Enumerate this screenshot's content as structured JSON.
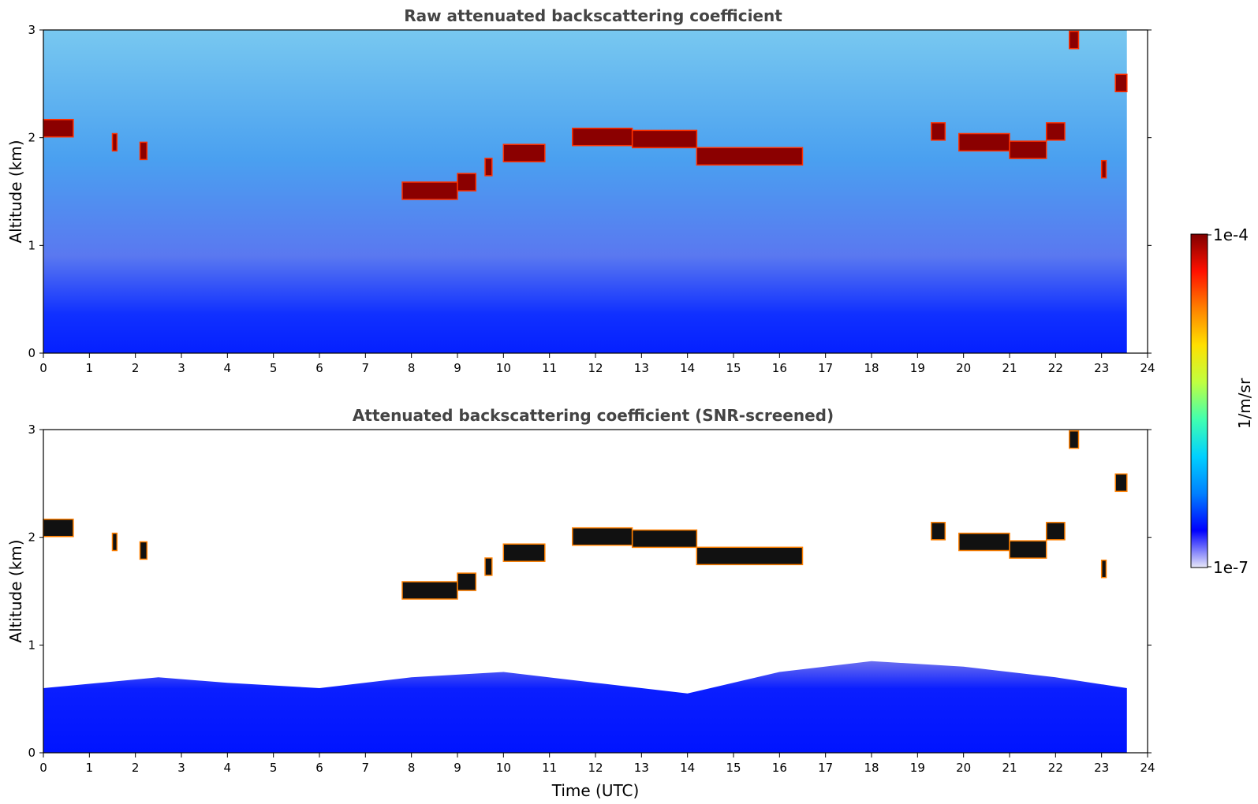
{
  "chart_data": [
    {
      "type": "heatmap",
      "title": "Raw attenuated backscattering coefficient",
      "xlabel": "",
      "ylabel": "Altitude (km)",
      "xlim": [
        0,
        24
      ],
      "ylim": [
        0,
        3
      ],
      "xticks": [
        "0",
        "1",
        "2",
        "3",
        "4",
        "5",
        "6",
        "7",
        "8",
        "9",
        "10",
        "11",
        "12",
        "13",
        "14",
        "15",
        "16",
        "17",
        "18",
        "19",
        "20",
        "21",
        "22",
        "23",
        "24"
      ],
      "yticks": [
        "0",
        "1",
        "2",
        "3"
      ],
      "data_end_time": 23.55,
      "cloud_layers": [
        {
          "t": [
            0.0,
            0.65
          ],
          "alt_km": 2.08
        },
        {
          "t": [
            1.5,
            1.6
          ],
          "alt_km": 1.95
        },
        {
          "t": [
            2.1,
            2.25
          ],
          "alt_km": 1.87
        },
        {
          "t": [
            7.8,
            9.0
          ],
          "alt_km": 1.5
        },
        {
          "t": [
            9.0,
            9.4
          ],
          "alt_km": 1.58
        },
        {
          "t": [
            9.6,
            9.75
          ],
          "alt_km": 1.72
        },
        {
          "t": [
            10.0,
            10.9
          ],
          "alt_km": 1.85
        },
        {
          "t": [
            11.5,
            12.8
          ],
          "alt_km": 2.0
        },
        {
          "t": [
            12.8,
            14.2
          ],
          "alt_km": 1.98
        },
        {
          "t": [
            14.2,
            16.5
          ],
          "alt_km": 1.82
        },
        {
          "t": [
            19.3,
            19.6
          ],
          "alt_km": 2.05
        },
        {
          "t": [
            19.9,
            21.0
          ],
          "alt_km": 1.95
        },
        {
          "t": [
            21.0,
            21.8
          ],
          "alt_km": 1.88
        },
        {
          "t": [
            21.8,
            22.2
          ],
          "alt_km": 2.05
        },
        {
          "t": [
            22.3,
            22.5
          ],
          "alt_km": 2.9
        },
        {
          "t": [
            23.0,
            23.1
          ],
          "alt_km": 1.7
        },
        {
          "t": [
            23.3,
            23.55
          ],
          "alt_km": 2.5
        }
      ]
    },
    {
      "type": "heatmap",
      "title": "Attenuated backscattering coefficient (SNR-screened)",
      "xlabel": "Time (UTC)",
      "ylabel": "Altitude (km)",
      "xlim": [
        0,
        24
      ],
      "ylim": [
        0,
        3
      ],
      "xticks": [
        "0",
        "1",
        "2",
        "3",
        "4",
        "5",
        "6",
        "7",
        "8",
        "9",
        "10",
        "11",
        "12",
        "13",
        "14",
        "15",
        "16",
        "17",
        "18",
        "19",
        "20",
        "21",
        "22",
        "23",
        "24"
      ],
      "yticks": [
        "0",
        "1",
        "2",
        "3"
      ],
      "data_end_time": 23.55,
      "boundary_layer_top_km": [
        {
          "t": 0,
          "h": 0.6
        },
        {
          "t": 2.5,
          "h": 0.7
        },
        {
          "t": 4,
          "h": 0.65
        },
        {
          "t": 6,
          "h": 0.6
        },
        {
          "t": 8,
          "h": 0.7
        },
        {
          "t": 10,
          "h": 0.75
        },
        {
          "t": 12,
          "h": 0.65
        },
        {
          "t": 14,
          "h": 0.55
        },
        {
          "t": 16,
          "h": 0.75
        },
        {
          "t": 18,
          "h": 0.85
        },
        {
          "t": 20,
          "h": 0.8
        },
        {
          "t": 22,
          "h": 0.7
        },
        {
          "t": 23.55,
          "h": 0.6
        }
      ],
      "cloud_layers": [
        {
          "t": [
            0.0,
            0.65
          ],
          "alt_km": 2.08
        },
        {
          "t": [
            1.5,
            1.6
          ],
          "alt_km": 1.95
        },
        {
          "t": [
            2.1,
            2.25
          ],
          "alt_km": 1.87
        },
        {
          "t": [
            7.8,
            9.0
          ],
          "alt_km": 1.5
        },
        {
          "t": [
            9.0,
            9.4
          ],
          "alt_km": 1.58
        },
        {
          "t": [
            9.6,
            9.75
          ],
          "alt_km": 1.72
        },
        {
          "t": [
            10.0,
            10.9
          ],
          "alt_km": 1.85
        },
        {
          "t": [
            11.5,
            12.8
          ],
          "alt_km": 2.0
        },
        {
          "t": [
            12.8,
            14.2
          ],
          "alt_km": 1.98
        },
        {
          "t": [
            14.2,
            16.5
          ],
          "alt_km": 1.82
        },
        {
          "t": [
            19.3,
            19.6
          ],
          "alt_km": 2.05
        },
        {
          "t": [
            19.9,
            21.0
          ],
          "alt_km": 1.95
        },
        {
          "t": [
            21.0,
            21.8
          ],
          "alt_km": 1.88
        },
        {
          "t": [
            21.8,
            22.2
          ],
          "alt_km": 2.05
        },
        {
          "t": [
            22.3,
            22.5
          ],
          "alt_km": 2.9
        },
        {
          "t": [
            23.0,
            23.1
          ],
          "alt_km": 1.7
        },
        {
          "t": [
            23.3,
            23.55
          ],
          "alt_km": 2.5
        }
      ]
    }
  ],
  "colorbar": {
    "label": "1/m/sr",
    "min_label": "1e-7",
    "max_label": "1e-4",
    "colors": [
      "#e8e8f8",
      "#0000ff",
      "#0080ff",
      "#00d0ff",
      "#40ffb0",
      "#c0ff40",
      "#ffe000",
      "#ff8000",
      "#ff1000",
      "#800000"
    ]
  }
}
